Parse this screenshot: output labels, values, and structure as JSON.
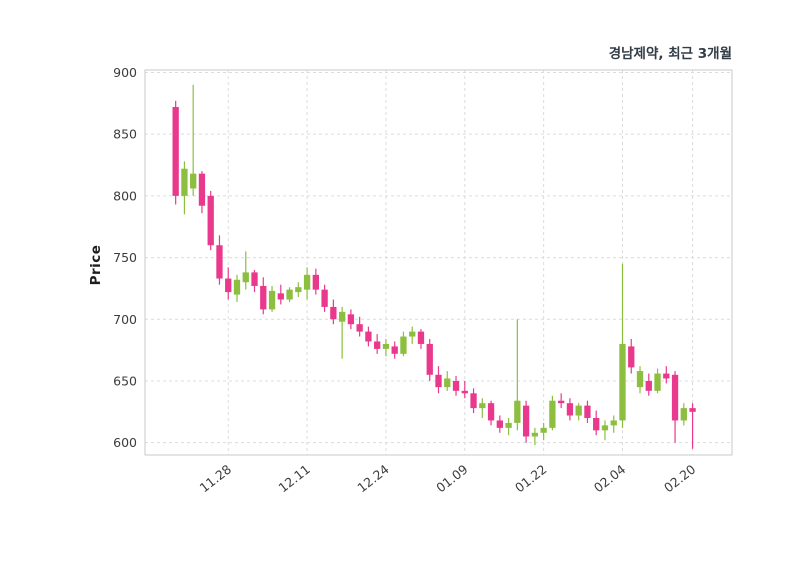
{
  "chart_data": {
    "type": "candlestick",
    "title": "경남제약, 최근 3개월",
    "ylabel": "Price",
    "ylim": [
      590,
      902
    ],
    "y_ticks": [
      600,
      650,
      700,
      750,
      800,
      850,
      900
    ],
    "x_tick_labels": [
      "11.28",
      "12.11",
      "12.24",
      "01.09",
      "01.22",
      "02.04",
      "02.20"
    ],
    "x_tick_indices": [
      6,
      15,
      24,
      33,
      42,
      51,
      59
    ],
    "grid": true,
    "up_color": "#8cbe3f",
    "down_color": "#e9398d",
    "candles": [
      [
        872,
        877,
        793,
        800
      ],
      [
        800,
        828,
        785,
        822
      ],
      [
        806,
        890,
        800,
        818
      ],
      [
        818,
        820,
        786,
        792
      ],
      [
        800,
        804,
        756,
        760
      ],
      [
        760,
        768,
        728,
        733
      ],
      [
        733,
        742,
        716,
        722
      ],
      [
        720,
        736,
        714,
        732
      ],
      [
        730,
        755,
        724,
        738
      ],
      [
        738,
        740,
        722,
        727
      ],
      [
        727,
        734,
        704,
        708
      ],
      [
        708,
        727,
        706,
        723
      ],
      [
        721,
        728,
        712,
        716
      ],
      [
        716,
        726,
        714,
        724
      ],
      [
        722,
        730,
        718,
        726
      ],
      [
        724,
        742,
        716,
        736
      ],
      [
        736,
        741,
        720,
        724
      ],
      [
        724,
        728,
        706,
        710
      ],
      [
        710,
        716,
        696,
        700
      ],
      [
        698,
        710,
        668,
        706
      ],
      [
        704,
        708,
        692,
        696
      ],
      [
        696,
        702,
        686,
        690
      ],
      [
        690,
        694,
        678,
        682
      ],
      [
        682,
        688,
        672,
        676
      ],
      [
        676,
        684,
        670,
        680
      ],
      [
        678,
        682,
        668,
        672
      ],
      [
        672,
        690,
        670,
        686
      ],
      [
        686,
        694,
        680,
        690
      ],
      [
        690,
        692,
        676,
        680
      ],
      [
        680,
        684,
        650,
        655
      ],
      [
        655,
        662,
        640,
        645
      ],
      [
        645,
        658,
        642,
        652
      ],
      [
        650,
        654,
        638,
        642
      ],
      [
        642,
        650,
        636,
        640
      ],
      [
        640,
        644,
        624,
        628
      ],
      [
        628,
        636,
        620,
        632
      ],
      [
        632,
        634,
        614,
        618
      ],
      [
        618,
        622,
        608,
        612
      ],
      [
        612,
        620,
        606,
        616
      ],
      [
        616,
        700,
        610,
        634
      ],
      [
        630,
        634,
        600,
        605
      ],
      [
        605,
        612,
        598,
        608
      ],
      [
        608,
        616,
        602,
        612
      ],
      [
        612,
        638,
        610,
        634
      ],
      [
        634,
        640,
        628,
        632
      ],
      [
        632,
        636,
        618,
        622
      ],
      [
        622,
        632,
        618,
        630
      ],
      [
        630,
        634,
        616,
        620
      ],
      [
        620,
        626,
        606,
        610
      ],
      [
        610,
        618,
        602,
        614
      ],
      [
        614,
        622,
        608,
        618
      ],
      [
        618,
        745,
        612,
        680
      ],
      [
        678,
        684,
        656,
        661
      ],
      [
        645,
        662,
        640,
        658
      ],
      [
        650,
        656,
        638,
        642
      ],
      [
        642,
        660,
        640,
        656
      ],
      [
        656,
        662,
        648,
        652
      ],
      [
        655,
        658,
        600,
        618
      ],
      [
        618,
        632,
        614,
        628
      ],
      [
        628,
        632,
        595,
        625
      ]
    ]
  }
}
